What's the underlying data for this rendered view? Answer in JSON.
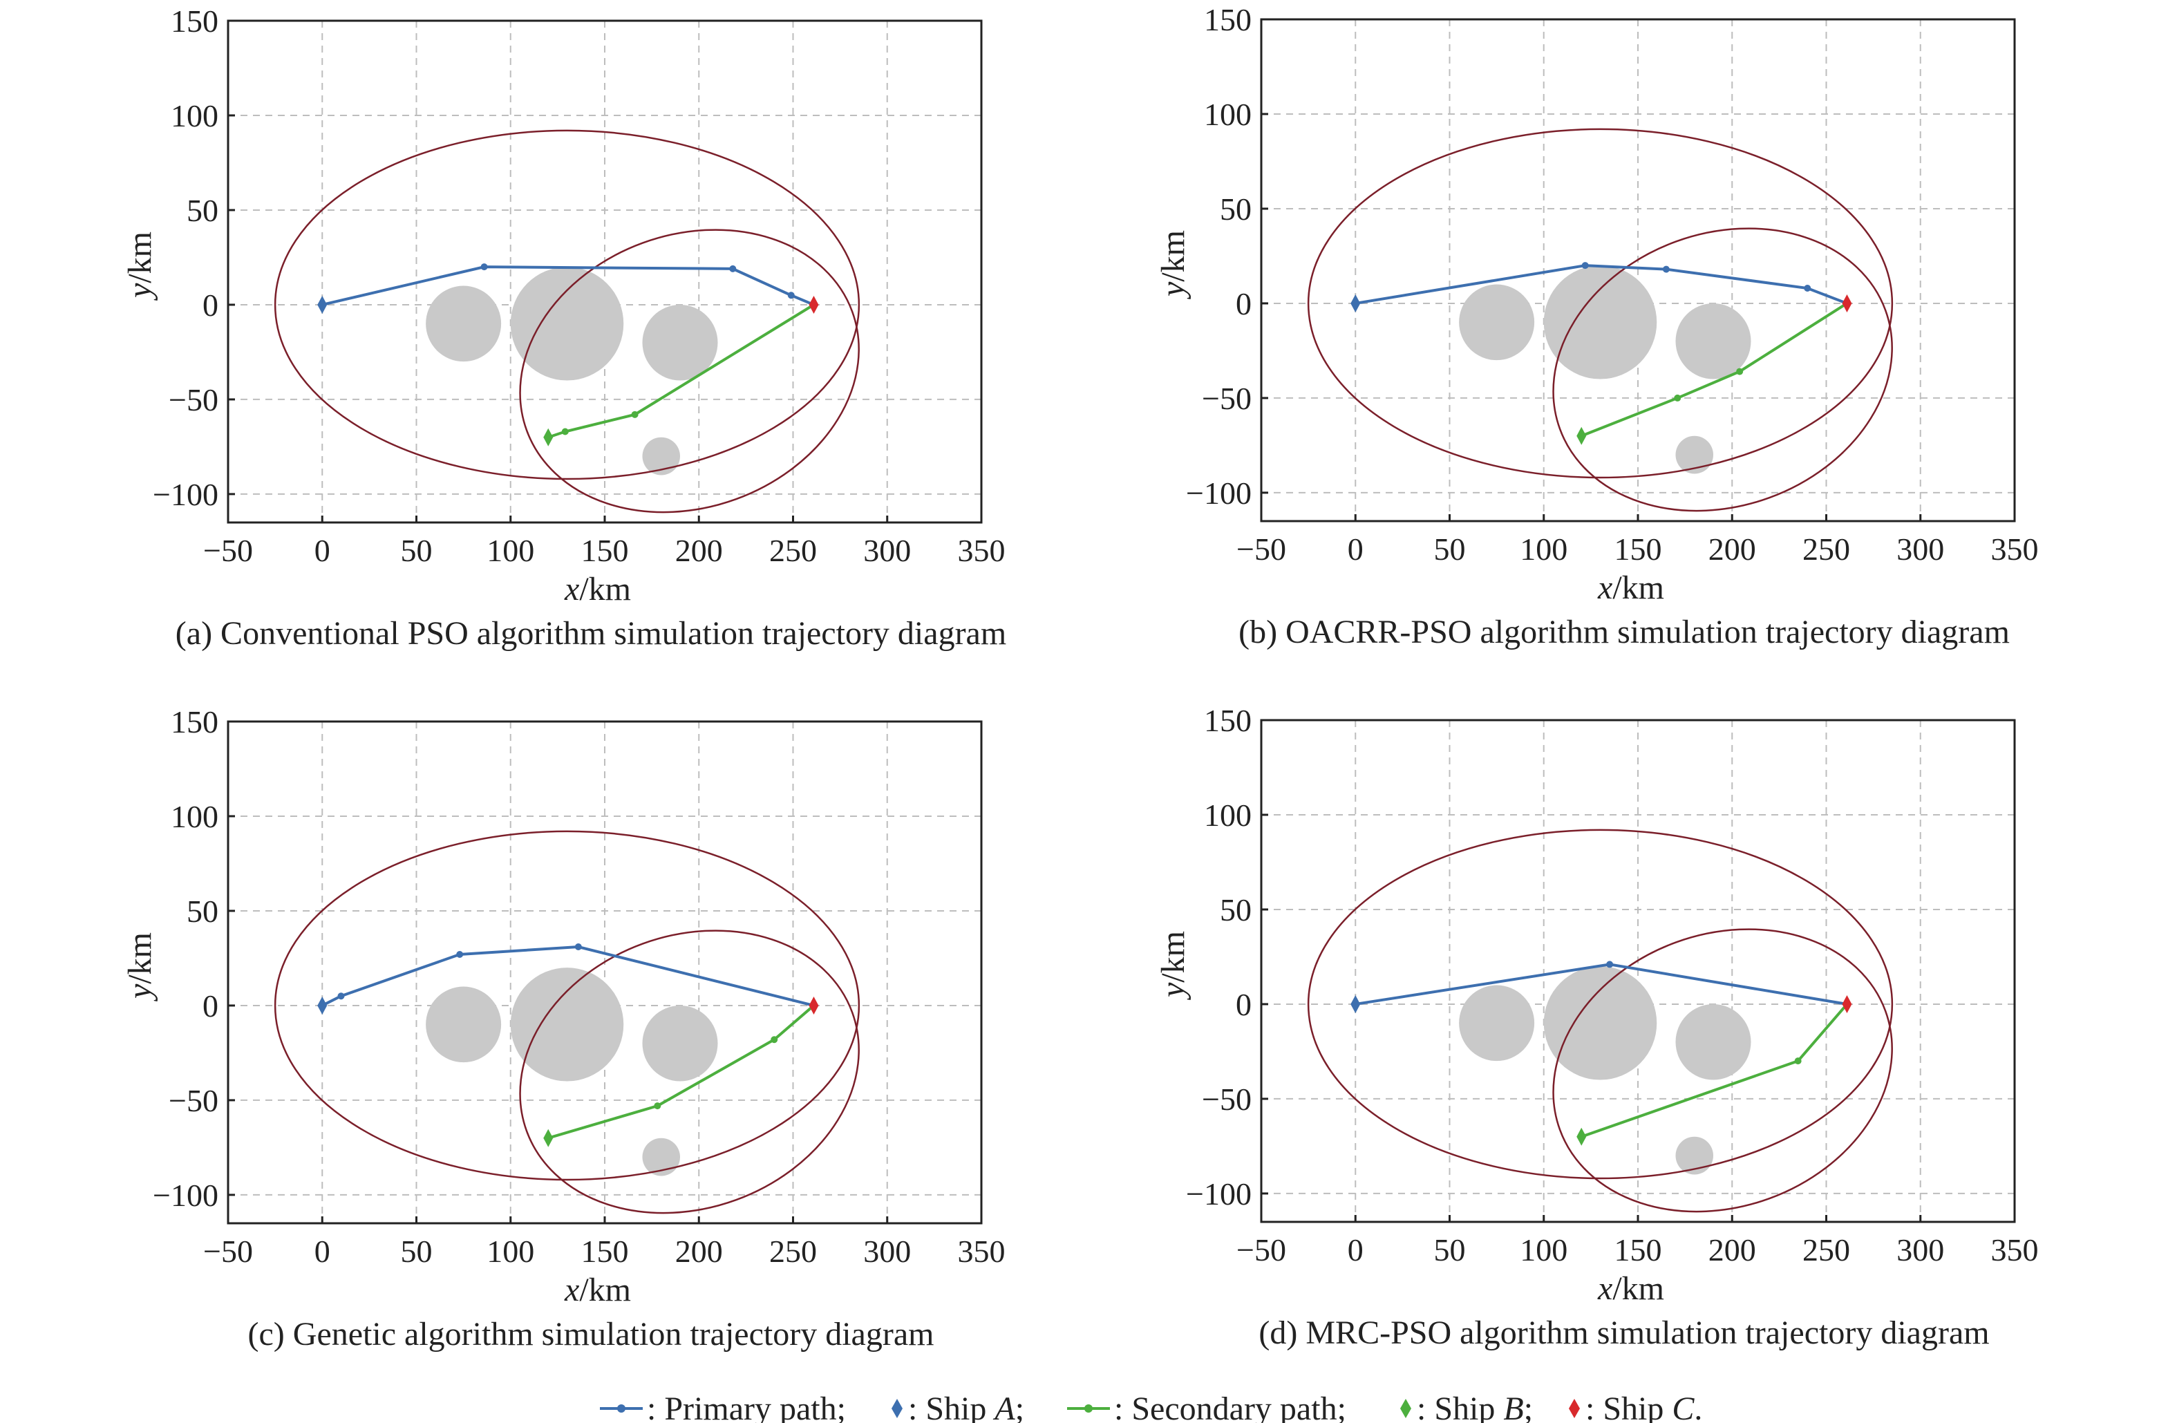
{
  "chart_data": [
    {
      "type": "line",
      "caption": "(a) Conventional PSO algorithm simulation trajectory diagram",
      "xlabel_var": "x",
      "xlabel_unit": "/km",
      "ylabel_var": "y",
      "ylabel_unit": "/km",
      "xlim": [
        -50,
        350
      ],
      "ylim": [
        -115,
        150
      ],
      "xticks": [
        -50,
        0,
        50,
        100,
        150,
        200,
        250,
        300,
        350
      ],
      "yticks": [
        -100,
        -50,
        0,
        50,
        100,
        150
      ],
      "grid": true,
      "obstacles": [
        {
          "cx": 75,
          "cy": -10,
          "r": 20
        },
        {
          "cx": 130,
          "cy": -10,
          "r": 30
        },
        {
          "cx": 190,
          "cy": -20,
          "r": 20
        },
        {
          "cx": 180,
          "cy": -80,
          "r": 10
        }
      ],
      "ellipses": [
        {
          "cx": 130,
          "cy": 0,
          "rx": 155,
          "ry": 92
        },
        {
          "cx": 195,
          "cy": -35,
          "rx": 92,
          "ry": 72,
          "angle": 20
        }
      ],
      "series": [
        {
          "role": "primary",
          "x": [
            0,
            86,
            218,
            249,
            261
          ],
          "y": [
            0,
            20,
            19,
            5,
            0
          ]
        },
        {
          "role": "secondary",
          "x": [
            120,
            129,
            166,
            261
          ],
          "y": [
            -70,
            -67,
            -58,
            0
          ]
        }
      ],
      "markers": [
        {
          "ship": "A",
          "x": 0,
          "y": 0
        },
        {
          "ship": "B",
          "x": 120,
          "y": -70
        },
        {
          "ship": "C",
          "x": 261,
          "y": 0
        }
      ]
    },
    {
      "type": "line",
      "caption": "(b) OACRR-PSO algorithm simulation trajectory diagram",
      "xlabel_var": "x",
      "xlabel_unit": "/km",
      "ylabel_var": "y",
      "ylabel_unit": "/km",
      "xlim": [
        -50,
        350
      ],
      "ylim": [
        -115,
        150
      ],
      "xticks": [
        -50,
        0,
        50,
        100,
        150,
        200,
        250,
        300,
        350
      ],
      "yticks": [
        -100,
        -50,
        0,
        50,
        100,
        150
      ],
      "grid": true,
      "obstacles": [
        {
          "cx": 75,
          "cy": -10,
          "r": 20
        },
        {
          "cx": 130,
          "cy": -10,
          "r": 30
        },
        {
          "cx": 190,
          "cy": -20,
          "r": 20
        },
        {
          "cx": 180,
          "cy": -80,
          "r": 10
        }
      ],
      "ellipses": [
        {
          "cx": 130,
          "cy": 0,
          "rx": 155,
          "ry": 92
        },
        {
          "cx": 195,
          "cy": -35,
          "rx": 92,
          "ry": 72,
          "angle": 20
        }
      ],
      "series": [
        {
          "role": "primary",
          "x": [
            0,
            122,
            165,
            240,
            261
          ],
          "y": [
            0,
            20,
            18,
            8,
            0
          ]
        },
        {
          "role": "secondary",
          "x": [
            120,
            171,
            204,
            261
          ],
          "y": [
            -70,
            -50,
            -36,
            0
          ]
        }
      ],
      "markers": [
        {
          "ship": "A",
          "x": 0,
          "y": 0
        },
        {
          "ship": "B",
          "x": 120,
          "y": -70
        },
        {
          "ship": "C",
          "x": 261,
          "y": 0
        }
      ]
    },
    {
      "type": "line",
      "caption": "(c) Genetic algorithm simulation trajectory diagram",
      "xlabel_var": "x",
      "xlabel_unit": "/km",
      "ylabel_var": "y",
      "ylabel_unit": "/km",
      "xlim": [
        -50,
        350
      ],
      "ylim": [
        -115,
        150
      ],
      "xticks": [
        -50,
        0,
        50,
        100,
        150,
        200,
        250,
        300,
        350
      ],
      "yticks": [
        -100,
        -50,
        0,
        50,
        100,
        150
      ],
      "grid": true,
      "obstacles": [
        {
          "cx": 75,
          "cy": -10,
          "r": 20
        },
        {
          "cx": 130,
          "cy": -10,
          "r": 30
        },
        {
          "cx": 190,
          "cy": -20,
          "r": 20
        },
        {
          "cx": 180,
          "cy": -80,
          "r": 10
        }
      ],
      "ellipses": [
        {
          "cx": 130,
          "cy": 0,
          "rx": 155,
          "ry": 92
        },
        {
          "cx": 195,
          "cy": -35,
          "rx": 92,
          "ry": 72,
          "angle": 20
        }
      ],
      "series": [
        {
          "role": "primary",
          "x": [
            0,
            10,
            73,
            136,
            261
          ],
          "y": [
            0,
            5,
            27,
            31,
            0
          ]
        },
        {
          "role": "secondary",
          "x": [
            120,
            178,
            240,
            261
          ],
          "y": [
            -70,
            -53,
            -18,
            0
          ]
        }
      ],
      "markers": [
        {
          "ship": "A",
          "x": 0,
          "y": 0
        },
        {
          "ship": "B",
          "x": 120,
          "y": -70
        },
        {
          "ship": "C",
          "x": 261,
          "y": 0
        }
      ]
    },
    {
      "type": "line",
      "caption": "(d) MRC-PSO algorithm simulation trajectory diagram",
      "xlabel_var": "x",
      "xlabel_unit": "/km",
      "ylabel_var": "y",
      "ylabel_unit": "/km",
      "xlim": [
        -50,
        350
      ],
      "ylim": [
        -115,
        150
      ],
      "xticks": [
        -50,
        0,
        50,
        100,
        150,
        200,
        250,
        300,
        350
      ],
      "yticks": [
        -100,
        -50,
        0,
        50,
        100,
        150
      ],
      "grid": true,
      "obstacles": [
        {
          "cx": 75,
          "cy": -10,
          "r": 20
        },
        {
          "cx": 130,
          "cy": -10,
          "r": 30
        },
        {
          "cx": 190,
          "cy": -20,
          "r": 20
        },
        {
          "cx": 180,
          "cy": -80,
          "r": 10
        }
      ],
      "ellipses": [
        {
          "cx": 130,
          "cy": 0,
          "rx": 155,
          "ry": 92
        },
        {
          "cx": 195,
          "cy": -35,
          "rx": 92,
          "ry": 72,
          "angle": 20
        }
      ],
      "series": [
        {
          "role": "primary",
          "x": [
            0,
            135,
            261
          ],
          "y": [
            0,
            21,
            0
          ]
        },
        {
          "role": "secondary",
          "x": [
            120,
            235,
            261
          ],
          "y": [
            -70,
            -30,
            0
          ]
        }
      ],
      "markers": [
        {
          "ship": "A",
          "x": 0,
          "y": 0
        },
        {
          "ship": "B",
          "x": 120,
          "y": -70
        },
        {
          "ship": "C",
          "x": 261,
          "y": 0
        }
      ]
    }
  ],
  "legend": {
    "primary": {
      "text": ": Primary path;",
      "color": "#3d6faf"
    },
    "shipA": {
      "pre": ": Ship ",
      "name": "A",
      "post": ";",
      "color": "#3d6faf"
    },
    "secondary": {
      "text": ": Secondary path;",
      "color": "#4caf3e"
    },
    "shipB": {
      "pre": ": Ship ",
      "name": "B",
      "post": ";",
      "color": "#4caf3e"
    },
    "shipC": {
      "pre": ": Ship ",
      "name": "C",
      "post": ".",
      "color": "#d8292c"
    }
  },
  "colors": {
    "primary": "#3d6faf",
    "secondary": "#4caf3e",
    "shipA": "#3d6faf",
    "shipB": "#4caf3e",
    "shipC": "#d8292c",
    "obstacle": "#c9c9c9",
    "ellipse": "#7b1f2a"
  }
}
